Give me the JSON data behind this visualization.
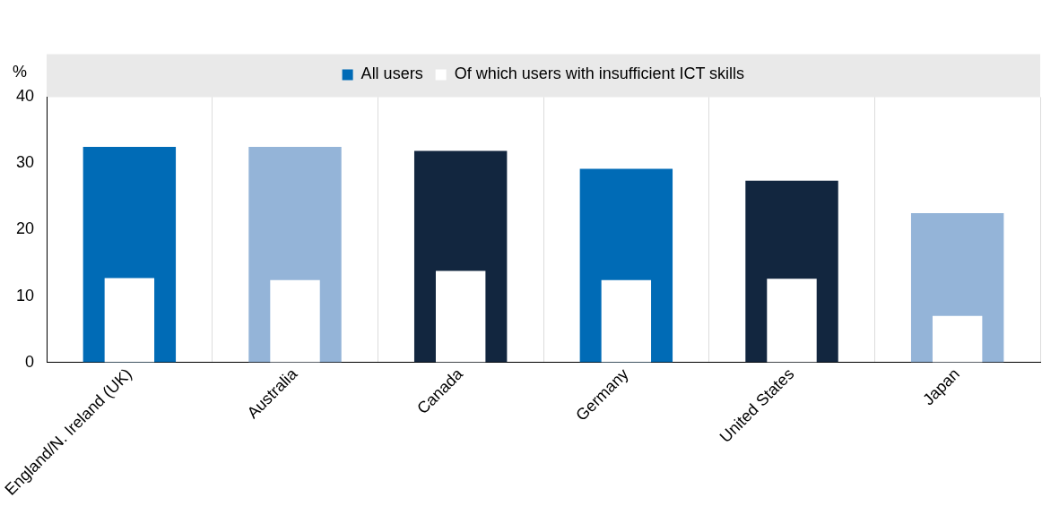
{
  "chart_data": {
    "type": "bar",
    "ylabel": "%",
    "categories": [
      "England/N. Ireland (UK)",
      "Australia",
      "Canada",
      "Germany",
      "United States",
      "Japan"
    ],
    "series": [
      {
        "name": "All users",
        "color": "#006bb6",
        "colors": [
          "#006bb6",
          "#94b4d8",
          "#12263f",
          "#006bb6",
          "#12263f",
          "#94b4d8"
        ],
        "values": [
          32.5,
          32.5,
          31.9,
          29.2,
          27.4,
          22.5
        ]
      },
      {
        "name": "Of which users with insufficient ICT skills",
        "color": "#ffffff",
        "values": [
          12.7,
          12.4,
          13.8,
          12.4,
          12.6,
          7.0
        ]
      }
    ],
    "ylim": [
      0,
      40
    ],
    "yticks": [
      0,
      10,
      20,
      30,
      40
    ],
    "grid": "x",
    "legend": "top"
  }
}
